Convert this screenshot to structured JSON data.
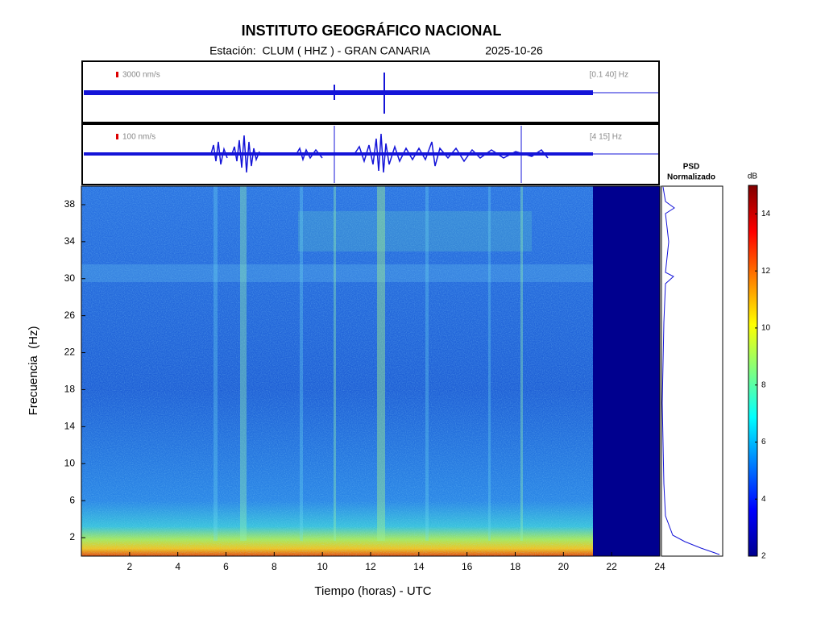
{
  "chart_data": [
    {
      "type": "spectrogram",
      "title": "INSTITUTO GEOGRÁFICO NACIONAL",
      "subtitle": "Estación:  CLUM ( HHZ ) - GRAN CANARIA",
      "date": "2025-10-26",
      "traces": [
        {
          "scale": "3000 nm/s",
          "band": "[0.1 40] Hz"
        },
        {
          "scale": "100 nm/s",
          "band": "[4 15] Hz"
        }
      ],
      "xlabel": "Tiempo (horas) - UTC",
      "ylabel": "Frecuencia  (Hz)",
      "xlim": [
        0,
        24
      ],
      "xticks": [
        2,
        4,
        6,
        8,
        10,
        12,
        14,
        16,
        18,
        20,
        22,
        24
      ],
      "ylim": [
        0,
        40
      ],
      "yticks": [
        2,
        6,
        10,
        14,
        18,
        22,
        26,
        30,
        34,
        38
      ]
    },
    {
      "type": "psd",
      "title": [
        "PSD",
        "Normalizado"
      ]
    },
    {
      "type": "colorbar",
      "label": "dB",
      "ylim": [
        2,
        15
      ],
      "yticks": [
        2,
        4,
        6,
        8,
        10,
        12,
        14
      ]
    }
  ]
}
